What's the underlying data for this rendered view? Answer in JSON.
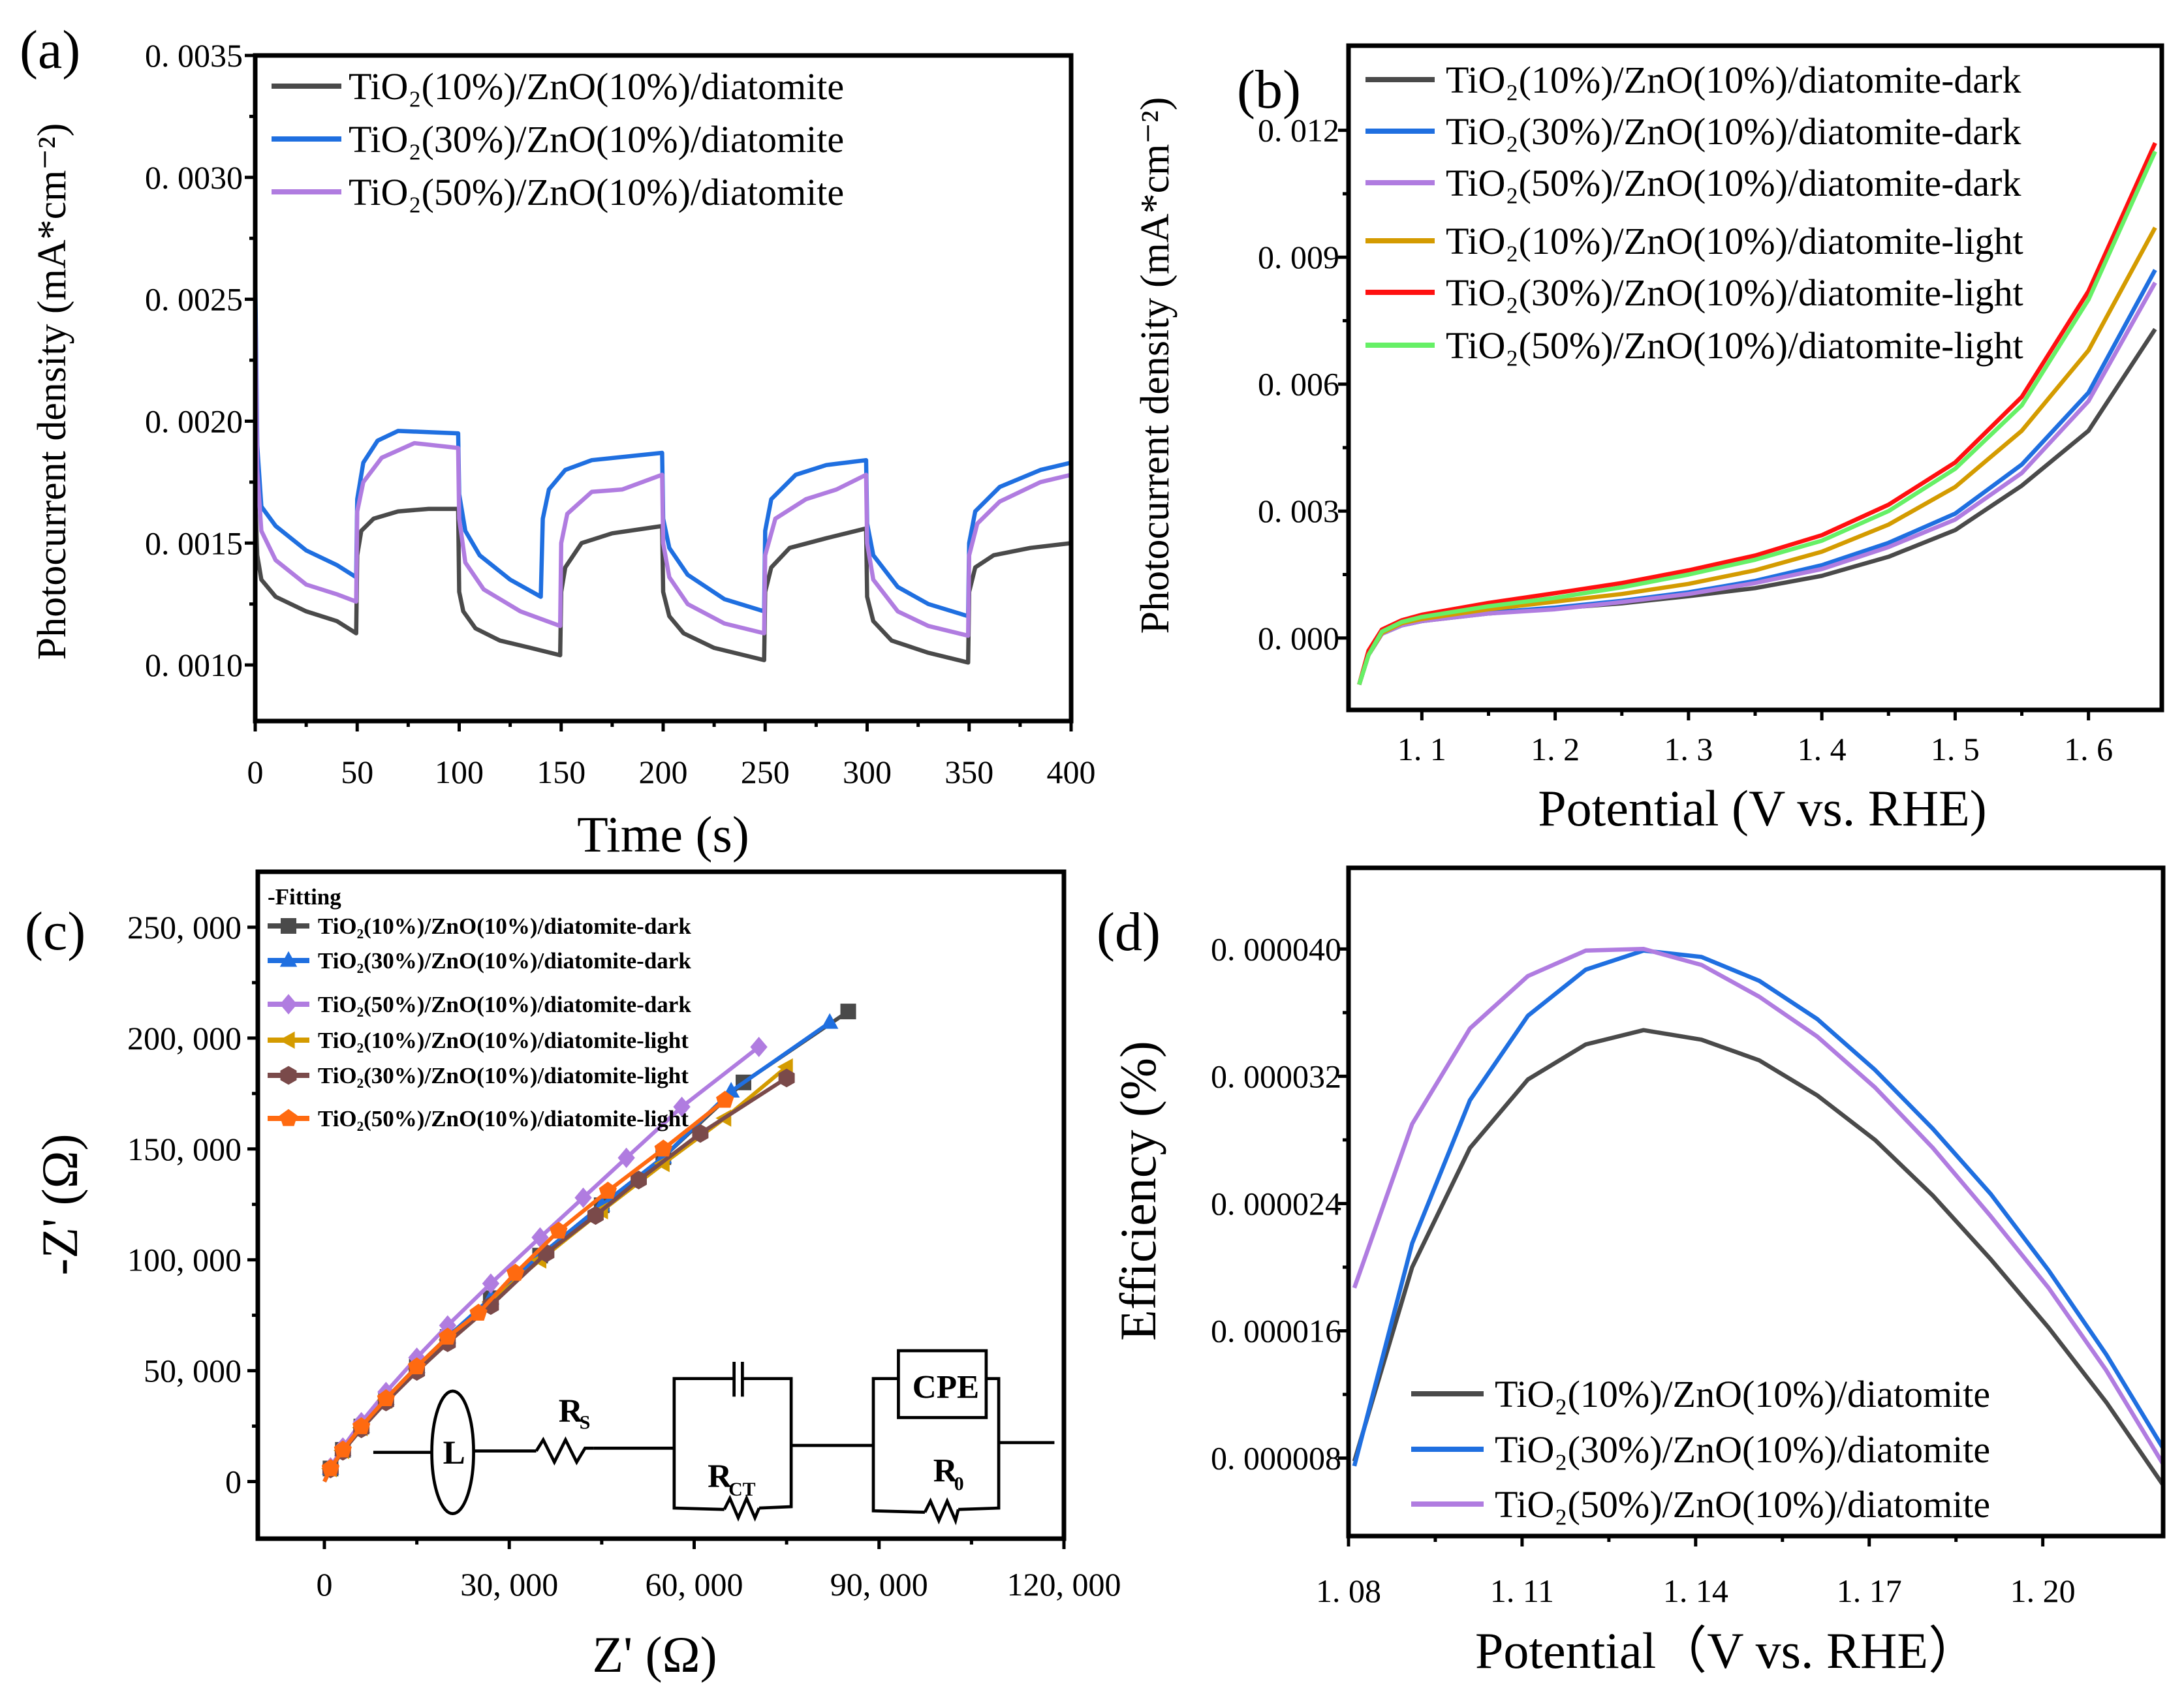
{
  "colors": {
    "gray": "#4a4a4a",
    "blue": "#1f6fe0",
    "purple": "#b07ce0",
    "gold": "#d49b00",
    "red": "#ff1010",
    "green": "#66f066",
    "brown": "#7a4a4a",
    "orange": "#ff6a10"
  },
  "chart_data": [
    {
      "id": "a",
      "panel_label": "(a)",
      "type": "line",
      "xlabel": "Time (s)",
      "ylabel": "Photocurrent density (mA*cm⁻²)",
      "xlim": [
        0,
        400
      ],
      "ylim": [
        0.00077,
        0.0035
      ],
      "xticks": [
        0,
        50,
        100,
        150,
        200,
        250,
        300,
        350,
        400
      ],
      "xtick_labels": [
        "0",
        "50",
        "100",
        "150",
        "200",
        "250",
        "300",
        "350",
        "400"
      ],
      "yticks": [
        0.001,
        0.0015,
        0.002,
        0.0025,
        0.003,
        0.0035
      ],
      "ytick_labels": [
        "0. 0010",
        "0. 0015",
        "0. 0020",
        "0. 0025",
        "0. 0030",
        "0. 0035"
      ],
      "legend_position": "top",
      "series": [
        {
          "name": "TiO₂(10%)/ZnO(10%)/diatomite",
          "color": "#4a4a4a",
          "x": [
            0,
            1,
            3,
            10,
            25,
            40,
            49.5,
            50,
            52,
            58,
            70,
            85,
            99.5,
            100,
            102,
            108,
            120,
            135,
            149.5,
            150,
            152,
            160,
            175,
            199.5,
            200,
            203,
            210,
            225,
            249.5,
            250,
            253,
            262,
            280,
            299.5,
            300,
            303,
            312,
            330,
            349.5,
            350,
            353,
            362,
            380,
            400
          ],
          "y": [
            0.0017,
            0.00145,
            0.00135,
            0.00128,
            0.00122,
            0.00118,
            0.00113,
            0.00145,
            0.00155,
            0.0016,
            0.00163,
            0.00164,
            0.00164,
            0.0013,
            0.00122,
            0.00115,
            0.0011,
            0.00107,
            0.00104,
            0.0013,
            0.0014,
            0.0015,
            0.00154,
            0.00157,
            0.0013,
            0.0012,
            0.00113,
            0.00107,
            0.00102,
            0.0013,
            0.0014,
            0.00148,
            0.00152,
            0.00156,
            0.00128,
            0.00118,
            0.0011,
            0.00105,
            0.00101,
            0.0013,
            0.0014,
            0.00145,
            0.00148,
            0.0015
          ]
        },
        {
          "name": "TiO₂(30%)/ZnO(10%)/diatomite",
          "color": "#1f6fe0",
          "x": [
            0,
            1,
            3,
            10,
            25,
            40,
            49.5,
            50,
            53,
            60,
            70,
            99.5,
            100,
            103,
            110,
            125,
            140,
            141,
            144,
            152,
            165,
            199.5,
            200,
            203,
            212,
            230,
            249.5,
            250,
            253,
            265,
            280,
            299.5,
            300,
            303,
            315,
            330,
            349.5,
            350,
            353,
            365,
            385,
            400
          ],
          "y": [
            0.0026,
            0.0019,
            0.00165,
            0.00157,
            0.00147,
            0.00141,
            0.00136,
            0.00168,
            0.00183,
            0.00192,
            0.00196,
            0.00195,
            0.0017,
            0.00155,
            0.00145,
            0.00135,
            0.00128,
            0.0016,
            0.00172,
            0.0018,
            0.00184,
            0.00187,
            0.0016,
            0.00148,
            0.00137,
            0.00127,
            0.00122,
            0.00155,
            0.00168,
            0.00178,
            0.00182,
            0.00184,
            0.00158,
            0.00145,
            0.00132,
            0.00125,
            0.0012,
            0.0015,
            0.00163,
            0.00173,
            0.0018,
            0.00183
          ]
        },
        {
          "name": "TiO₂(50%)/ZnO(10%)/diatomite",
          "color": "#b07ce0",
          "x": [
            0,
            1,
            3,
            10,
            25,
            40,
            49.5,
            50,
            53,
            62,
            78,
            99.5,
            100,
            103,
            112,
            130,
            149.5,
            150,
            153,
            165,
            180,
            199.5,
            200,
            203,
            212,
            230,
            249.5,
            250,
            255,
            270,
            285,
            299.5,
            300,
            303,
            315,
            330,
            349.5,
            350,
            354,
            365,
            385,
            400
          ],
          "y": [
            0.0025,
            0.0018,
            0.00155,
            0.00143,
            0.00133,
            0.00129,
            0.00126,
            0.00163,
            0.00175,
            0.00185,
            0.00191,
            0.00189,
            0.0016,
            0.00142,
            0.00131,
            0.00122,
            0.00116,
            0.0015,
            0.00162,
            0.00171,
            0.00172,
            0.00178,
            0.0015,
            0.00136,
            0.00125,
            0.00117,
            0.00113,
            0.00145,
            0.0016,
            0.00168,
            0.00172,
            0.00178,
            0.0015,
            0.00135,
            0.00122,
            0.00116,
            0.00112,
            0.00145,
            0.00158,
            0.00167,
            0.00175,
            0.00178
          ]
        }
      ]
    },
    {
      "id": "b",
      "panel_label": "(b)",
      "type": "line",
      "xlabel": "Potential (V vs. RHE)",
      "ylabel": "Photocurrent density (mA*cm⁻²)",
      "xlim": [
        1.045,
        1.655
      ],
      "ylim": [
        -0.0017,
        0.014
      ],
      "xticks": [
        1.1,
        1.2,
        1.3,
        1.4,
        1.5,
        1.6
      ],
      "xtick_labels": [
        "1. 1",
        "1. 2",
        "1. 3",
        "1. 4",
        "1. 5",
        "1. 6"
      ],
      "yticks": [
        0,
        0.003,
        0.006,
        0.009,
        0.012
      ],
      "ytick_labels": [
        "0. 000",
        "0. 003",
        "0. 006",
        "0. 009",
        "0. 012"
      ],
      "legend_position": "top-left",
      "x": [
        1.053,
        1.06,
        1.07,
        1.085,
        1.1,
        1.15,
        1.2,
        1.25,
        1.3,
        1.35,
        1.4,
        1.45,
        1.5,
        1.55,
        1.6,
        1.65
      ],
      "series": [
        {
          "name": "TiO₂(10%)/ZnO(10%)/diatomite-dark",
          "color": "#4a4a4a",
          "y": [
            -0.0011,
            -0.0004,
            0.0001,
            0.0003,
            0.0004,
            0.00058,
            0.0007,
            0.00082,
            0.00099,
            0.00118,
            0.00147,
            0.00192,
            0.00255,
            0.0036,
            0.0049,
            0.0073
          ]
        },
        {
          "name": "TiO₂(30%)/ZnO(10%)/diatomite-dark",
          "color": "#1f6fe0",
          "y": [
            -0.0011,
            -0.0004,
            0.0001,
            0.0003,
            0.0004,
            0.0006,
            0.00072,
            0.00088,
            0.00108,
            0.00135,
            0.00172,
            0.00225,
            0.00294,
            0.0041,
            0.0058,
            0.0087
          ]
        },
        {
          "name": "TiO₂(50%)/ZnO(10%)/diatomite-dark",
          "color": "#b07ce0",
          "y": [
            -0.0011,
            -0.0004,
            0.0001,
            0.0003,
            0.0004,
            0.00058,
            0.00068,
            0.00085,
            0.00104,
            0.0013,
            0.00163,
            0.00215,
            0.0028,
            0.0039,
            0.0056,
            0.0084
          ]
        },
        {
          "name": "TiO₂(10%)/ZnO(10%)/diatomite-light",
          "color": "#d49b00",
          "y": [
            -0.0011,
            -0.0004,
            0.00012,
            0.00035,
            0.00045,
            0.00068,
            0.00086,
            0.00104,
            0.00128,
            0.0016,
            0.00204,
            0.00268,
            0.00357,
            0.0049,
            0.0068,
            0.0097
          ]
        },
        {
          "name": "TiO₂(30%)/ZnO(10%)/diatomite-light",
          "color": "#ff1010",
          "y": [
            -0.0011,
            -0.0003,
            0.0002,
            0.00042,
            0.00055,
            0.00083,
            0.00106,
            0.0013,
            0.0016,
            0.00195,
            0.00243,
            0.00315,
            0.00415,
            0.0057,
            0.0082,
            0.0117
          ]
        },
        {
          "name": "TiO₂(50%)/ZnO(10%)/diatomite-light",
          "color": "#66f066",
          "y": [
            -0.0011,
            -0.0004,
            0.00015,
            0.00038,
            0.0005,
            0.00075,
            0.00095,
            0.0012,
            0.0015,
            0.00185,
            0.0023,
            0.003,
            0.004,
            0.0055,
            0.008,
            0.0115
          ]
        }
      ]
    },
    {
      "id": "c",
      "panel_label": "(c)",
      "type": "scatter-line",
      "xlabel": "Z' (Ω)",
      "ylabel": "-Z' (Ω)",
      "xlim": [
        -10800,
        120000
      ],
      "ylim": [
        -25750,
        275000
      ],
      "xticks": [
        0,
        30000,
        60000,
        90000,
        120000
      ],
      "xtick_labels": [
        "0",
        "30, 000",
        "60, 000",
        "90, 000",
        "120, 000"
      ],
      "yticks": [
        0,
        50000,
        100000,
        150000,
        200000,
        250000
      ],
      "ytick_labels": [
        "0",
        "50, 000",
        "100, 000",
        "150, 000",
        "200, 000",
        "250, 000"
      ],
      "legend_title": "-Fitting",
      "legend_position": "top-left",
      "series": [
        {
          "name": "TiO₂(10%)/ZnO(10%)/diatomite-dark",
          "color": "#4a4a4a",
          "marker": "square",
          "x": [
            0,
            1000,
            3000,
            6000,
            10000,
            15000,
            20000,
            27000,
            35000,
            45000,
            55000,
            68000,
            85000
          ],
          "y": [
            0,
            5900,
            14300,
            24800,
            37400,
            51800,
            65200,
            82700,
            101900,
            124600,
            146300,
            180000,
            212000
          ]
        },
        {
          "name": "TiO₂(30%)/ZnO(10%)/diatomite-dark",
          "color": "#1f6fe0",
          "marker": "triangle-up",
          "x": [
            0,
            1000,
            3000,
            6000,
            10000,
            15000,
            20000,
            27000,
            35000,
            45000,
            55000,
            66000,
            82000
          ],
          "y": [
            0,
            5900,
            14300,
            24800,
            37400,
            51800,
            65200,
            82700,
            101900,
            124600,
            146300,
            176000,
            207000
          ]
        },
        {
          "name": "TiO₂(50%)/ZnO(10%)/diatomite-dark",
          "color": "#b07ce0",
          "marker": "diamond",
          "x": [
            0,
            1000,
            3000,
            6000,
            10000,
            15000,
            20000,
            27000,
            35000,
            42000,
            49000,
            58000,
            70500
          ],
          "y": [
            0,
            6400,
            15400,
            26800,
            40400,
            55900,
            70400,
            89300,
            110100,
            128000,
            146000,
            169000,
            196000
          ]
        },
        {
          "name": "TiO₂(10%)/ZnO(10%)/diatomite-light",
          "color": "#d49b00",
          "marker": "triangle-left",
          "x": [
            0,
            1000,
            3000,
            6000,
            10000,
            15000,
            20000,
            27000,
            35000,
            45000,
            55000,
            65000,
            75000
          ],
          "y": [
            0,
            5800,
            14000,
            24300,
            36700,
            50800,
            63900,
            81000,
            99900,
            122100,
            143400,
            163900,
            187000
          ]
        },
        {
          "name": "TiO₂(30%)/ZnO(10%)/diatomite-light",
          "color": "#7a4a4a",
          "marker": "hexagon",
          "x": [
            0,
            1000,
            3000,
            6000,
            10000,
            15000,
            20000,
            27000,
            36000,
            44000,
            51000,
            61000,
            75000
          ],
          "y": [
            0,
            5700,
            13700,
            23800,
            35900,
            49700,
            62600,
            79400,
            103000,
            120000,
            136000,
            157000,
            182000
          ]
        },
        {
          "name": "TiO₂(50%)/ZnO(10%)/diatomite-light",
          "color": "#ff6a10",
          "marker": "pentagon",
          "x": [
            0,
            1000,
            3000,
            6000,
            10000,
            15000,
            20000,
            25000,
            31000,
            38000,
            46000,
            55000,
            65000
          ],
          "y": [
            0,
            5900,
            14300,
            24800,
            37400,
            51800,
            65200,
            76000,
            94000,
            113000,
            131000,
            150000,
            172000
          ]
        }
      ],
      "inset_circuit_labels": {
        "inductor": "L",
        "rs": "R",
        "rs_sub": "S",
        "rct": "R",
        "rct_sub": "CT",
        "cpe": "CPE",
        "r0": "R",
        "r0_sub": "0"
      }
    },
    {
      "id": "d",
      "panel_label": "(d)",
      "type": "line",
      "xlabel": "Potential（V vs. RHE）",
      "ylabel": "Efficiency (%)",
      "xlim": [
        1.08,
        1.2208
      ],
      "ylim": [
        3.1e-06,
        4.51e-05
      ],
      "xticks": [
        1.08,
        1.11,
        1.14,
        1.17,
        1.2
      ],
      "xtick_labels": [
        "1. 08",
        "1. 11",
        "1. 14",
        "1. 17",
        "1. 20"
      ],
      "yticks": [
        8e-06,
        1.6e-05,
        2.4e-05,
        3.2e-05,
        4e-05
      ],
      "ytick_labels": [
        "0. 000008",
        "0. 000016",
        "0. 000024",
        "0. 000032",
        "0. 000040"
      ],
      "legend_position": "bottom-right",
      "x": [
        1.081,
        1.091,
        1.101,
        1.111,
        1.121,
        1.131,
        1.141,
        1.151,
        1.161,
        1.171,
        1.181,
        1.191,
        1.201,
        1.211,
        1.221
      ],
      "series": [
        {
          "name": "TiO₂(10%)/ZnO(10%)/diatomite",
          "color": "#4a4a4a",
          "y": [
            7.8e-06,
            2e-05,
            2.75e-05,
            3.18e-05,
            3.4e-05,
            3.49e-05,
            3.43e-05,
            3.3e-05,
            3.08e-05,
            2.8e-05,
            2.45e-05,
            2.05e-05,
            1.62e-05,
            1.15e-05,
            6.2e-06
          ]
        },
        {
          "name": "TiO₂(30%)/ZnO(10%)/diatomite",
          "color": "#1f6fe0",
          "y": [
            7.5e-06,
            2.15e-05,
            3.05e-05,
            3.58e-05,
            3.87e-05,
            3.99e-05,
            3.95e-05,
            3.8e-05,
            3.56e-05,
            3.24e-05,
            2.87e-05,
            2.46e-05,
            1.98e-05,
            1.45e-05,
            8.5e-06
          ]
        },
        {
          "name": "TiO₂(50%)/ZnO(10%)/diatomite",
          "color": "#b07ce0",
          "y": [
            1.87e-05,
            2.9e-05,
            3.5e-05,
            3.83e-05,
            3.99e-05,
            4e-05,
            3.9e-05,
            3.7e-05,
            3.45e-05,
            3.13e-05,
            2.75e-05,
            2.32e-05,
            1.87e-05,
            1.35e-05,
            7.5e-06
          ]
        }
      ]
    }
  ]
}
